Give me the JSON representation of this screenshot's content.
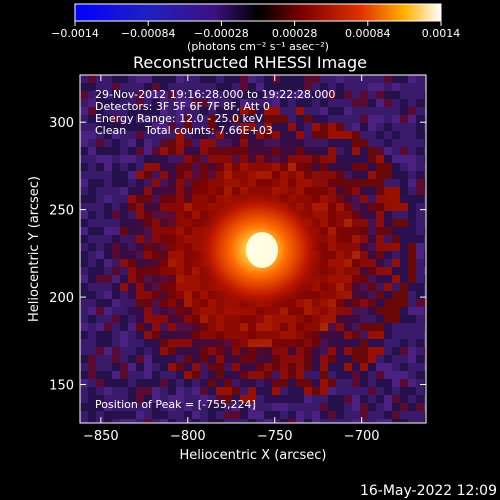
{
  "chart_data": {
    "type": "heatmap",
    "title": "Reconstructed RHESSI Image",
    "xlabel": "Heliocentric X (arcsec)",
    "ylabel": "Heliocentric Y (arcsec)",
    "xlim": [
      -862,
      -663
    ],
    "ylim": [
      128,
      327
    ],
    "x_ticks": [
      -850,
      -800,
      -750,
      -700
    ],
    "x_tick_labels": [
      "−850",
      "−800",
      "−750",
      "−700"
    ],
    "y_ticks": [
      150,
      200,
      250,
      300
    ],
    "y_tick_labels": [
      "150",
      "200",
      "250",
      "300"
    ],
    "colorbar": {
      "range": [
        -0.0014,
        0.0014
      ],
      "ticks": [
        -0.0014,
        -0.00084,
        -0.00028,
        0.00028,
        0.00084,
        0.0014
      ],
      "tick_labels": [
        "−0.0014",
        "−0.00084",
        "−0.00028",
        "0.00028",
        "0.00084",
        "0.0014"
      ],
      "units_label": "(photons cm⁻² s⁻¹ asec⁻²)",
      "colormap": "RHESSI red-temperature with blue/purple negative side"
    },
    "annotations": {
      "time_range": "29-Nov-2012 19:16:28.000 to 19:22:28.000",
      "detectors": "Detectors: 3F 5F 6F 7F 8F, Att 0",
      "energy": "Energy Range: 12.0 - 25.0 keV",
      "clean_label": "Clean",
      "total_counts": "Total counts: 7.66E+03",
      "peak": "Position of Peak = [-755,224]"
    },
    "peak": {
      "x": -755,
      "y": 224,
      "value": 0.0014
    },
    "grid": false
  },
  "footer": {
    "timestamp": "16-May-2022 12:09"
  }
}
